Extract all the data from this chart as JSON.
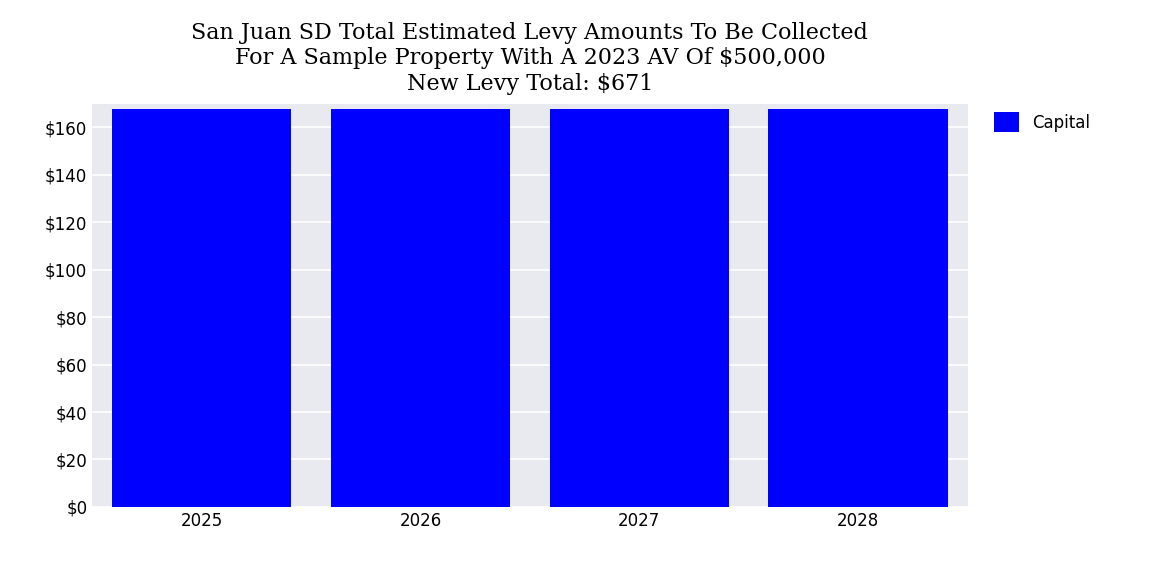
{
  "title_line1": "San Juan SD Total Estimated Levy Amounts To Be Collected",
  "title_line2": "For A Sample Property With A 2023 AV Of $500,000",
  "title_line3": "New Levy Total: $671",
  "categories": [
    2025,
    2026,
    2027,
    2028
  ],
  "values": [
    167.75,
    167.75,
    167.75,
    167.75
  ],
  "bar_color": "#0000FF",
  "legend_label": "Capital",
  "ylim": [
    0,
    170
  ],
  "yticks": [
    0,
    20,
    40,
    60,
    80,
    100,
    120,
    140,
    160
  ],
  "background_color": "#e8eaf0",
  "fig_background": "#ffffff",
  "title_fontsize": 16,
  "tick_fontsize": 12,
  "legend_fontsize": 12,
  "bar_width": 0.82
}
